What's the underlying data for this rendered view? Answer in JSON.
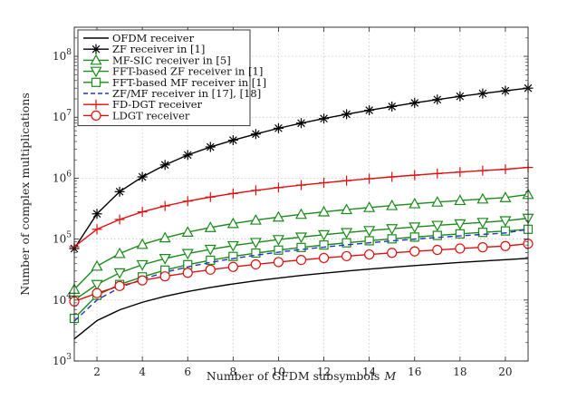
{
  "chart_data": {
    "type": "line",
    "title": "",
    "xlabel": "Number of GFDM subsymbols",
    "xlabel_symbol": "M",
    "ylabel": "Number of complex multiplications",
    "xscale": "linear",
    "yscale": "log",
    "xlim": [
      1,
      21
    ],
    "ylim": [
      1000,
      300000000
    ],
    "xticks": [
      2,
      4,
      6,
      8,
      10,
      12,
      14,
      16,
      18,
      20
    ],
    "yticks": [
      {
        "value": 1000,
        "base": "10",
        "exp": "3"
      },
      {
        "value": 10000,
        "base": "10",
        "exp": "4"
      },
      {
        "value": 100000,
        "base": "10",
        "exp": "5"
      },
      {
        "value": 1000000,
        "base": "10",
        "exp": "6"
      },
      {
        "value": 10000000,
        "base": "10",
        "exp": "7"
      },
      {
        "value": 100000000,
        "base": "10",
        "exp": "8"
      }
    ],
    "grid": true,
    "legend_position": "top-left",
    "x": [
      1,
      2,
      3,
      4,
      5,
      6,
      7,
      8,
      9,
      10,
      11,
      12,
      13,
      14,
      15,
      16,
      17,
      18,
      19,
      20,
      21
    ],
    "series": [
      {
        "name": "OFDM receiver",
        "color": "#000000",
        "dash": "solid",
        "marker": "none",
        "values": [
          2300,
          4600,
          6900,
          9200,
          11500,
          13800,
          16100,
          18400,
          20700,
          23000,
          25300,
          27600,
          29900,
          32200,
          34500,
          36800,
          39100,
          41400,
          43700,
          46000,
          48300
        ]
      },
      {
        "name": "ZF receiver in [1]",
        "color": "#000000",
        "dash": "solid",
        "marker": "asterisk",
        "values": [
          70000,
          260000,
          600000,
          1050000,
          1650000,
          2400000,
          3250000,
          4200000,
          5300000,
          6600000,
          8000000,
          9500000,
          11200000,
          13000000,
          15000000,
          17200000,
          19500000,
          22000000,
          24500000,
          27200000,
          30000000
        ]
      },
      {
        "name": "MF-SIC receiver in [5]",
        "color": "#1a8a1a",
        "dash": "solid",
        "marker": "triangle-up",
        "values": [
          15000,
          36000,
          58000,
          82000,
          105000,
          130000,
          155000,
          180000,
          205000,
          230000,
          255000,
          280000,
          305000,
          330000,
          355000,
          380000,
          405000,
          430000,
          455000,
          480000,
          540000
        ]
      },
      {
        "name": "FFT-based ZF receiver in [1]",
        "color": "#1a8a1a",
        "dash": "solid",
        "marker": "triangle-down",
        "values": [
          10000,
          18000,
          28000,
          38000,
          48000,
          58000,
          68000,
          78000,
          88000,
          98000,
          108000,
          118000,
          128000,
          138000,
          148000,
          158000,
          168000,
          178000,
          188000,
          200000,
          220000
        ]
      },
      {
        "name": "FFT-based MF receiver in [1]",
        "color": "#1a8a1a",
        "dash": "solid",
        "marker": "square",
        "values": [
          5000,
          12000,
          18000,
          24000,
          31000,
          38000,
          45000,
          52000,
          59000,
          66000,
          73000,
          80000,
          87000,
          94000,
          101000,
          108000,
          115000,
          122000,
          129000,
          136000,
          145000
        ]
      },
      {
        "name": "ZF/MF receiver in [17], [18]",
        "color": "#2233cc",
        "dash": "dashed",
        "marker": "none",
        "values": [
          4500,
          10000,
          16000,
          22000,
          28500,
          35000,
          41500,
          48000,
          54500,
          61000,
          67500,
          74000,
          80500,
          87000,
          93500,
          100000,
          106500,
          113000,
          119500,
          126000,
          145000
        ]
      },
      {
        "name": "FD-DGT receiver",
        "color": "#e01010",
        "dash": "solid",
        "marker": "plus",
        "values": [
          75000,
          145000,
          210000,
          280000,
          350000,
          420000,
          490000,
          560000,
          630000,
          700000,
          770000,
          840000,
          910000,
          980000,
          1050000,
          1120000,
          1190000,
          1260000,
          1330000,
          1400000,
          1500000
        ]
      },
      {
        "name": "LDGT receiver",
        "color": "#e01010",
        "dash": "solid",
        "marker": "circle",
        "values": [
          9500,
          13000,
          17000,
          21000,
          24500,
          28000,
          31500,
          35000,
          38500,
          42000,
          45500,
          49000,
          52500,
          56000,
          59500,
          63000,
          66500,
          70000,
          73500,
          77000,
          84000
        ]
      }
    ]
  }
}
